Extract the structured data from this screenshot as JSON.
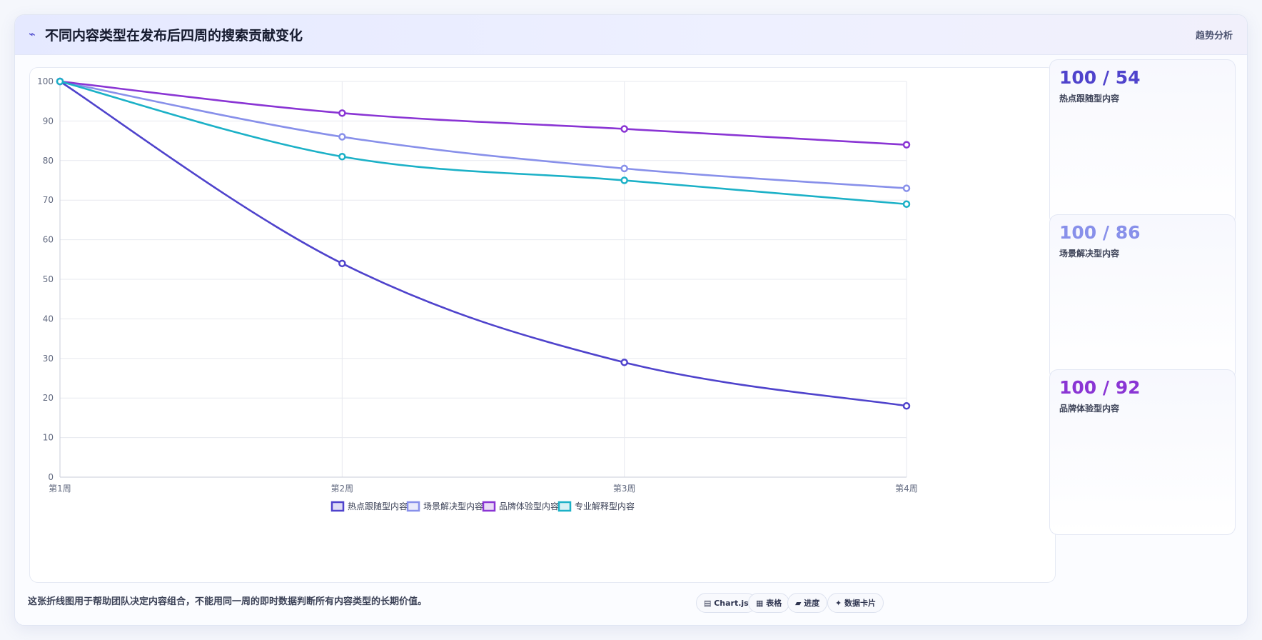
{
  "header": {
    "icon": "trend-icon",
    "title": "不同内容类型在发布后四周的搜索贡献变化",
    "badge": "趋势分析"
  },
  "chart_data": {
    "type": "line",
    "categories": [
      "第1周",
      "第2周",
      "第3周",
      "第4周"
    ],
    "ylim": [
      0,
      100
    ],
    "yticks": [
      0,
      10,
      20,
      30,
      40,
      50,
      60,
      70,
      80,
      90,
      100
    ],
    "grid": true,
    "legend": "bottom",
    "series": [
      {
        "name": "热点跟随型内容",
        "color": "#4f43cc",
        "values": [
          100,
          54,
          29,
          18
        ]
      },
      {
        "name": "场景解决型内容",
        "color": "#8890ea",
        "values": [
          100,
          86,
          78,
          73
        ]
      },
      {
        "name": "品牌体验型内容",
        "color": "#8a35d4",
        "values": [
          100,
          92,
          88,
          84
        ]
      },
      {
        "name": "专业解释型内容",
        "color": "#1cb1c7",
        "values": [
          100,
          81,
          75,
          69
        ]
      }
    ]
  },
  "side_cards": [
    {
      "value": "100 / 54",
      "label": "热点跟随型内容",
      "color": "#4f43cc"
    },
    {
      "value": "100 / 86",
      "label": "场景解决型内容",
      "color": "#8890ea"
    },
    {
      "value": "100 / 92",
      "label": "品牌体验型内容",
      "color": "#8a35d4"
    }
  ],
  "footer": {
    "note": "这张折线图用于帮助团队决定内容组合，不能用同一周的即时数据判断所有内容类型的长期价值。",
    "chips": [
      {
        "label": "▤ Chart.js"
      },
      {
        "label": "▦ 表格"
      },
      {
        "label": "▰ 进度"
      },
      {
        "label": "✦ 数据卡片"
      }
    ]
  }
}
